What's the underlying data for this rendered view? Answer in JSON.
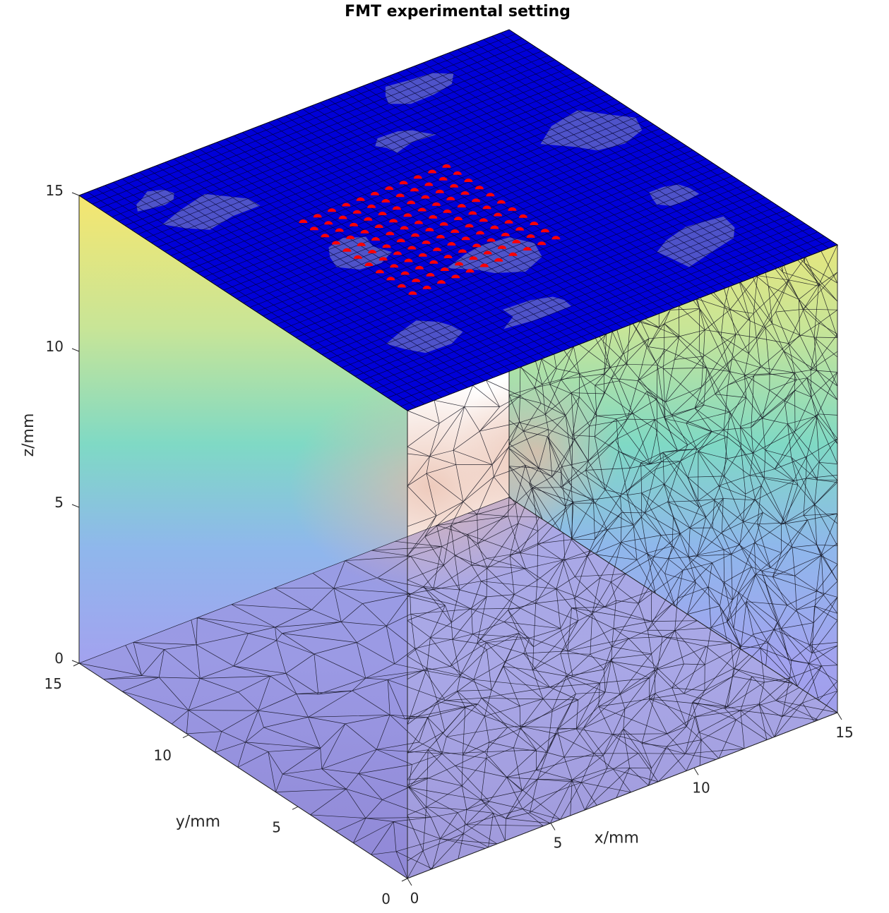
{
  "chart_data": {
    "type": "scatter",
    "title": "FMT experimental setting",
    "xlabel": "x/mm",
    "ylabel": "y/mm",
    "zlabel": "z/mm",
    "xlim": [
      0,
      15
    ],
    "ylim": [
      0,
      15
    ],
    "zlim": [
      0,
      15
    ],
    "xticks": [
      "0",
      "5",
      "10",
      "15"
    ],
    "yticks": [
      "0",
      "5",
      "10",
      "15"
    ],
    "zticks": [
      "0",
      "5",
      "10",
      "15"
    ],
    "grid": false,
    "volume": {
      "x_range": [
        0,
        15
      ],
      "y_range": [
        0,
        15
      ],
      "z_range": [
        0,
        15
      ],
      "colormap": "parula",
      "face_alpha": 0.4,
      "mesh": "tetrahedral"
    },
    "top_surface": {
      "z": 15,
      "color": "#0000d8"
    },
    "sources": {
      "color": "#ff0000",
      "z": 15,
      "x_values": [
        4,
        4.5,
        5,
        5.5,
        6,
        6.5,
        7,
        7.5,
        8,
        8.5,
        9
      ],
      "y_values": [
        5,
        5.5,
        6,
        6.5,
        7,
        7.5,
        8,
        8.5,
        9,
        9.5,
        10
      ]
    }
  }
}
